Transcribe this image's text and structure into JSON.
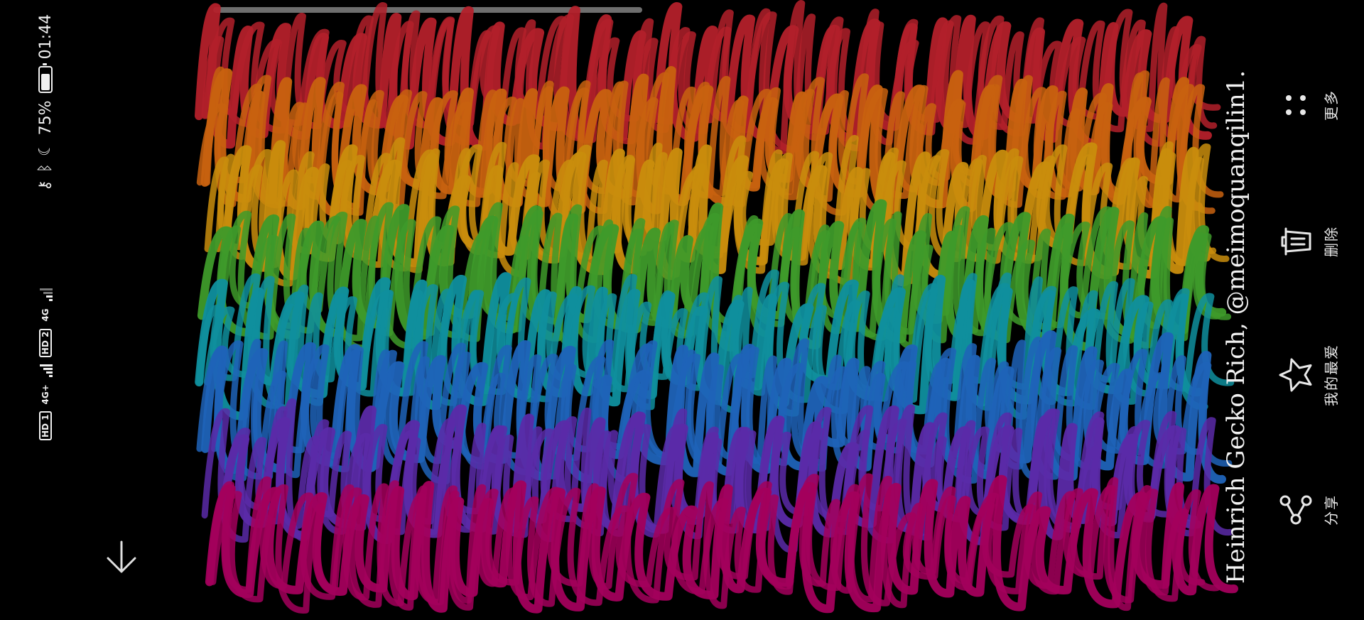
{
  "status_bar": {
    "time": "01:44",
    "battery_percent": "75%",
    "battery_level": 0.75,
    "hd_badge_1": "HD 1",
    "hd_badge_2": "HD 2",
    "network_1": "4G+",
    "network_2": "4G",
    "icons": [
      "key-icon",
      "bluetooth-icon",
      "moon-icon",
      "battery-icon",
      "signal-icon"
    ]
  },
  "image": {
    "credit": "Heinrich Gecko Rich, @meimoquanqilin1.",
    "stroke_colors": [
      "#b3202a",
      "#c8620f",
      "#c98d0d",
      "#3e9a2a",
      "#0f8f9e",
      "#1f63b8",
      "#5b2aa8",
      "#a3005c"
    ]
  },
  "actions": {
    "share": "分享",
    "favorite": "我的最爱",
    "delete": "删除",
    "more": "更多"
  },
  "icons": {
    "download": "arrow-down-icon",
    "share": "share-icon",
    "favorite": "star-icon",
    "delete": "trash-icon",
    "more": "more-dots-icon"
  }
}
